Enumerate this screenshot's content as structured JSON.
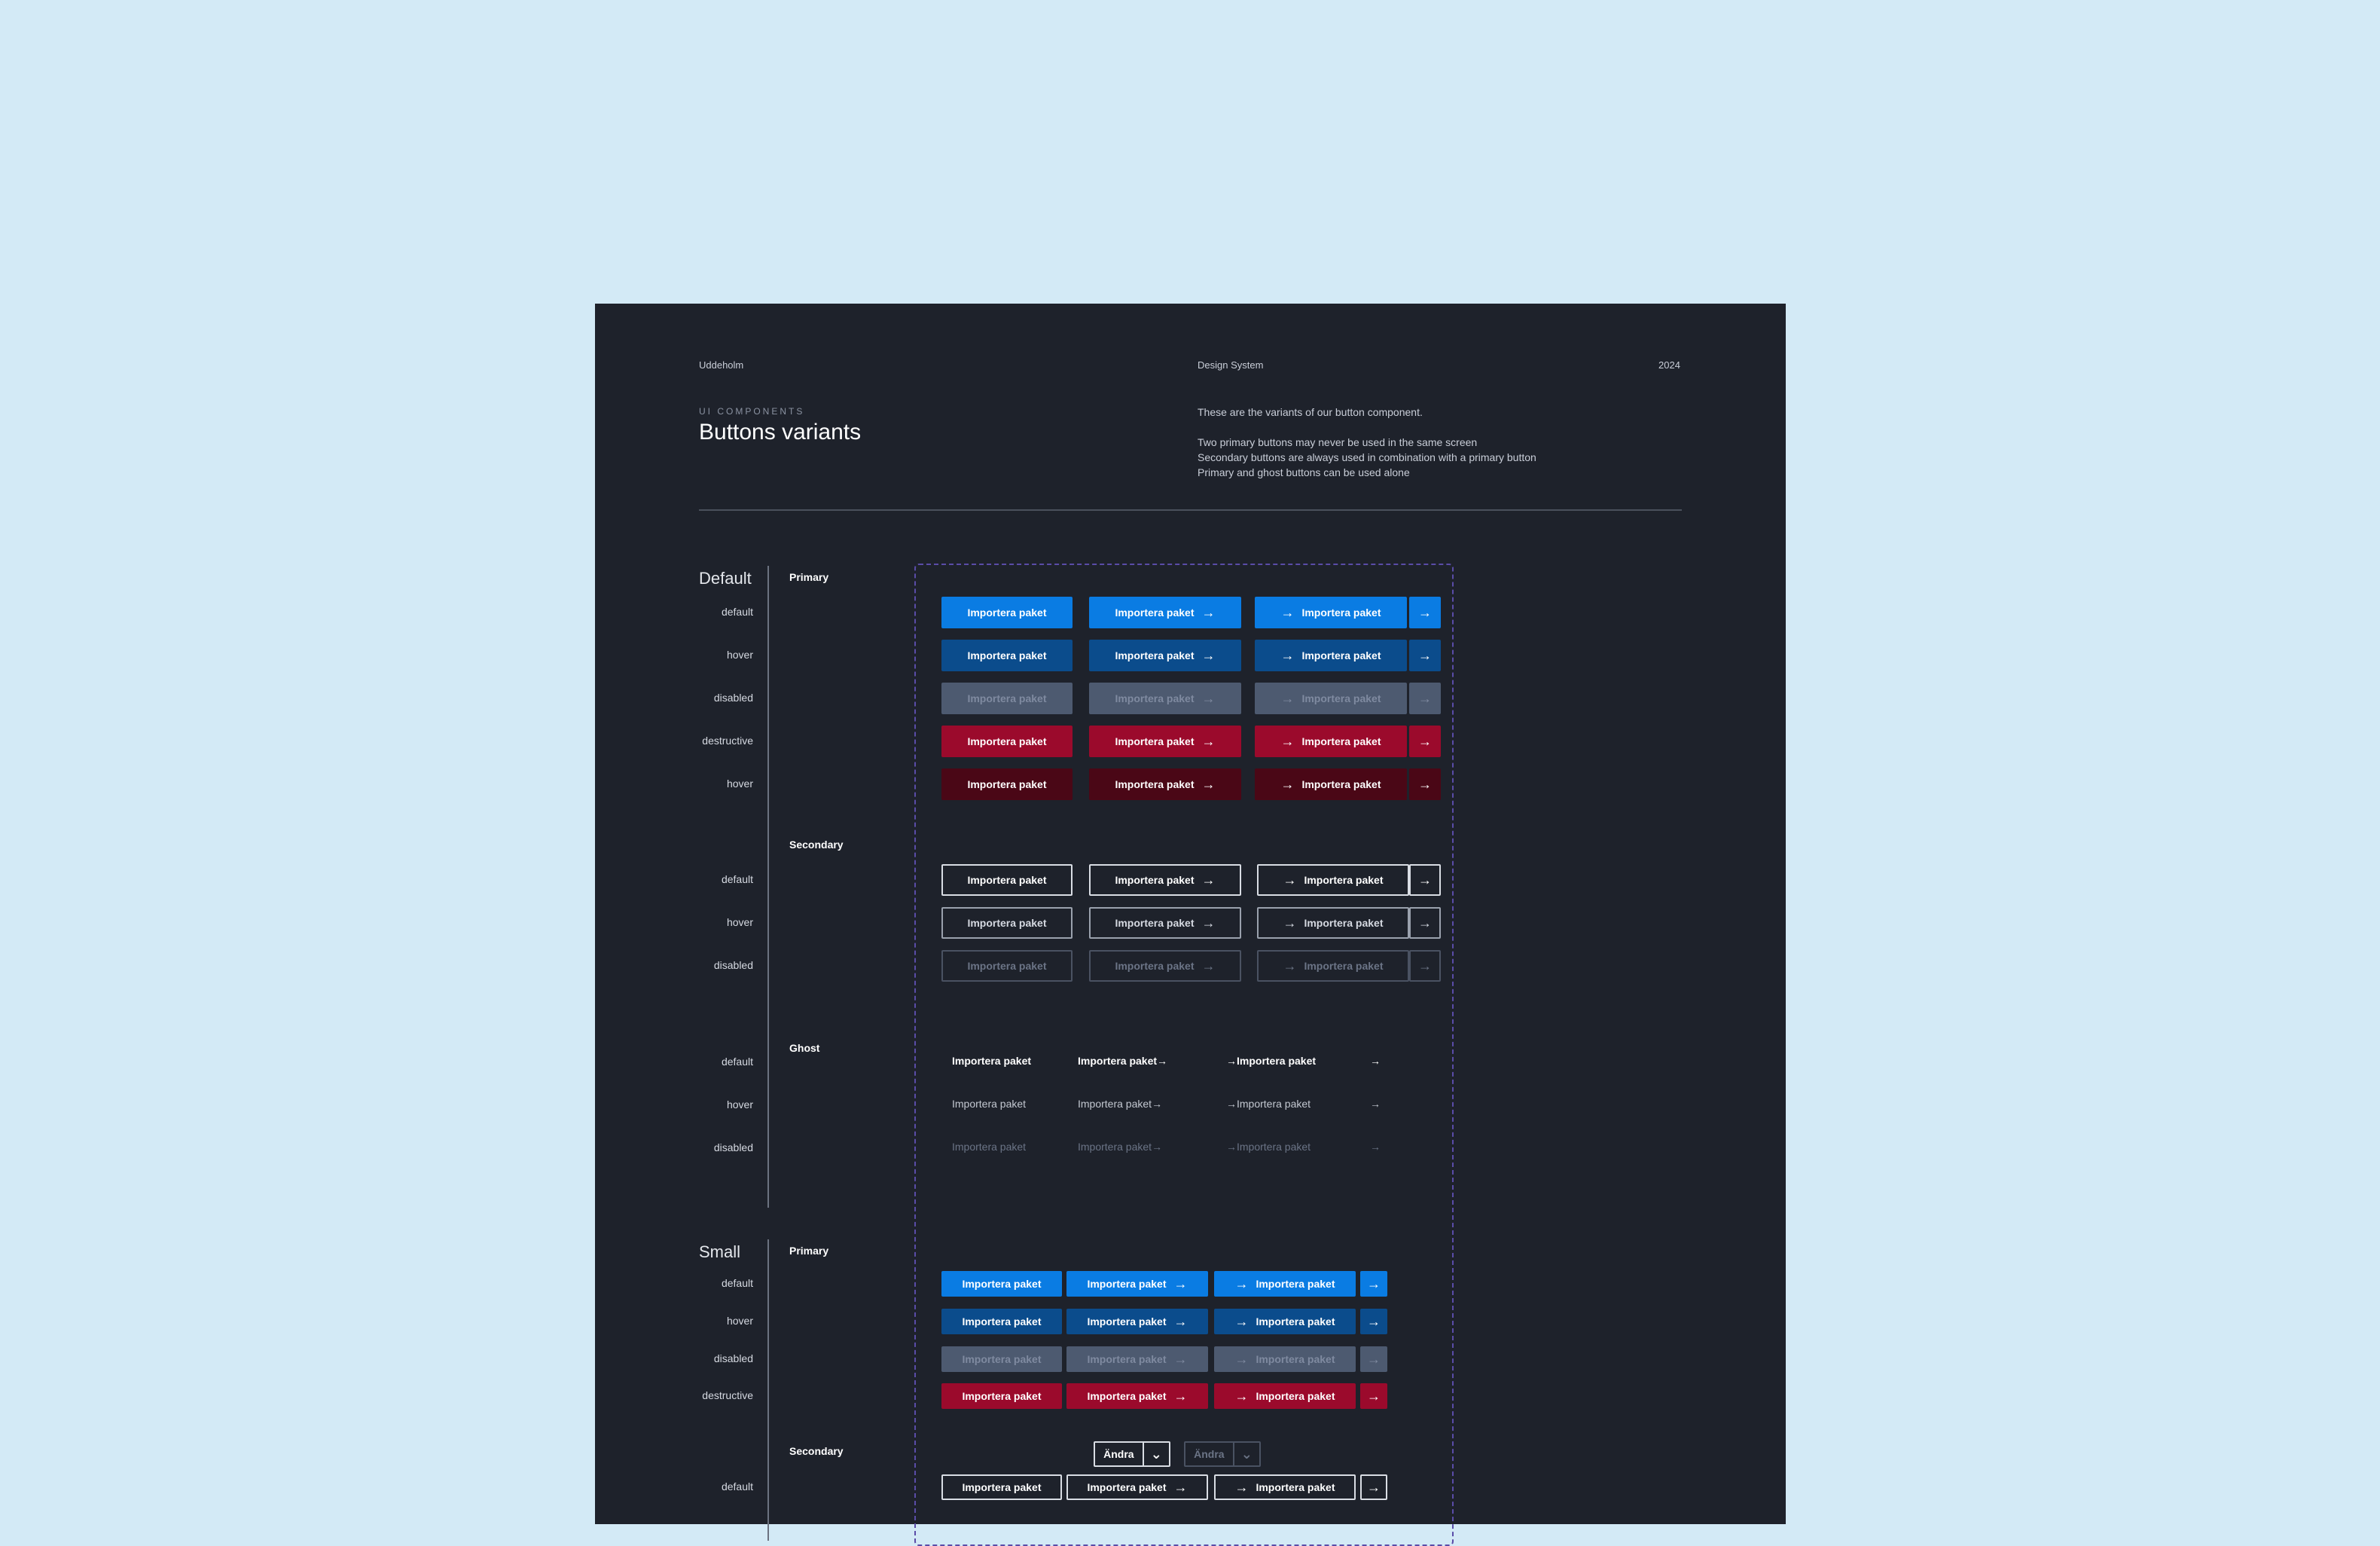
{
  "header": {
    "brand": "Uddeholm",
    "doc": "Design System",
    "year": "2024"
  },
  "intro": {
    "eyebrow": "UI COMPONENTS",
    "title": "Buttons variants",
    "desc1": "These are the variants of our button component.",
    "desc2": "Two primary buttons may never be used in the same screen",
    "desc3": "Secondary buttons are always used in combination with a primary button",
    "desc4": "Primary and ghost buttons can be used alone"
  },
  "button_label": "Importera paket",
  "icons": {
    "arrow": "arrow-right-icon",
    "chevron": "chevron-down-icon"
  },
  "colors": {
    "primary": "#0a7ce3",
    "primary_hover": "#0b4c8c",
    "disabled_fill": "#4d5a70",
    "disabled_text": "#7f8aa0",
    "destructive": "#9b0a2c",
    "destructive_hover": "#4a0716",
    "panel": "#1e222b",
    "background": "#d3eaf6"
  },
  "sections": {
    "default": {
      "label": "Default",
      "primary": {
        "label": "Primary",
        "states": [
          "default",
          "hover",
          "disabled",
          "destructive",
          "hover"
        ]
      },
      "secondary": {
        "label": "Secondary",
        "states": [
          "default",
          "hover",
          "disabled"
        ]
      },
      "ghost": {
        "label": "Ghost",
        "states": [
          "default",
          "hover",
          "disabled"
        ]
      }
    },
    "small": {
      "label": "Small",
      "primary": {
        "label": "Primary",
        "states": [
          "default",
          "hover",
          "disabled",
          "destructive"
        ]
      },
      "secondary": {
        "label": "Secondary",
        "states": [
          "default"
        ]
      },
      "split_label": "Ändra"
    }
  }
}
